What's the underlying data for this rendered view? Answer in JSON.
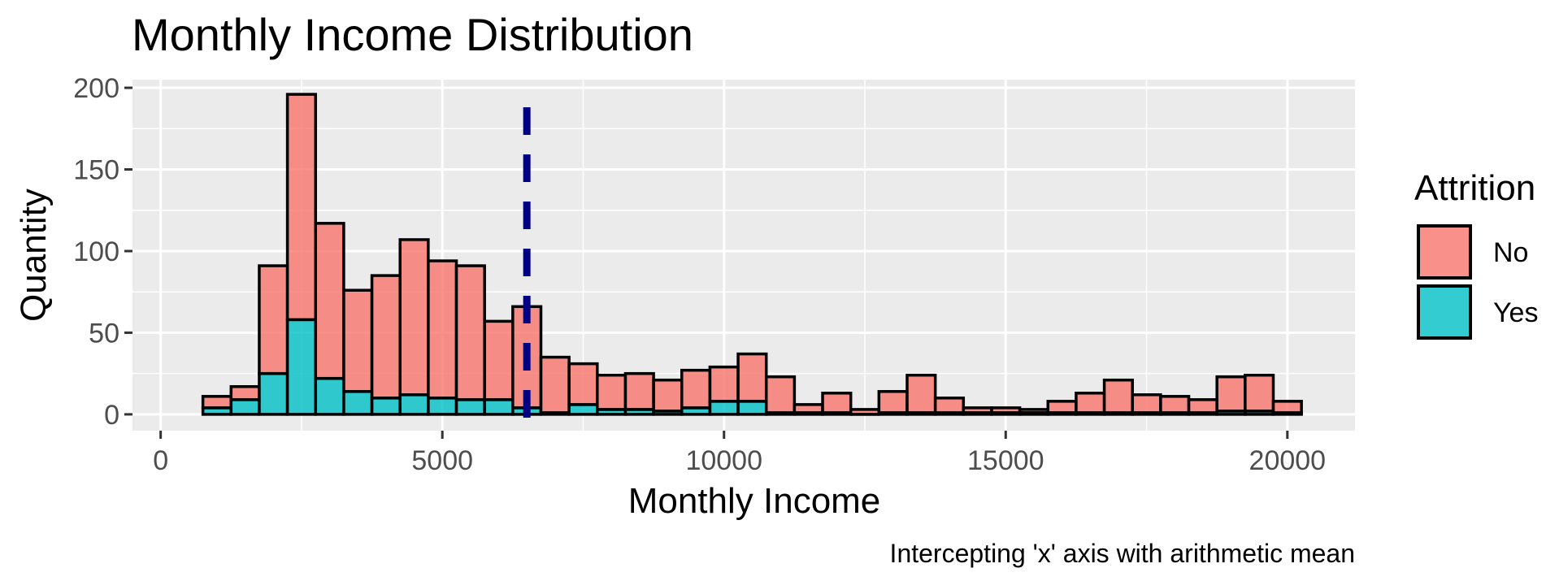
{
  "chart_data": {
    "type": "bar",
    "stacked": true,
    "title": "Monthly Income Distribution",
    "xlabel": "Monthly Income",
    "ylabel": "Quantity",
    "caption": "Intercepting 'x' axis with arithmetic mean",
    "xlim": [
      -500,
      21200
    ],
    "ylim": [
      -10,
      205
    ],
    "x_ticks": [
      0,
      5000,
      10000,
      15000,
      20000
    ],
    "x_tick_labels": [
      "0",
      "5000",
      "10000",
      "15000",
      "20000"
    ],
    "y_ticks": [
      0,
      50,
      100,
      150,
      200
    ],
    "y_tick_labels": [
      "0",
      "50",
      "100",
      "150",
      "200"
    ],
    "grid": true,
    "bin_start": 750,
    "bin_width": 500,
    "bin_centers": [
      1000,
      1500,
      2000,
      2500,
      3000,
      3500,
      4000,
      4500,
      5000,
      5500,
      6000,
      6500,
      7000,
      7500,
      8000,
      8500,
      9000,
      9500,
      10000,
      10500,
      11000,
      11500,
      12000,
      12500,
      13000,
      13500,
      14000,
      14500,
      15000,
      15500,
      16000,
      16500,
      17000,
      17500,
      18000,
      18500,
      19000,
      19500,
      20000
    ],
    "series": [
      {
        "name": "No",
        "color": "#F8766D",
        "values": [
          7,
          8,
          66,
          138,
          95,
          62,
          75,
          95,
          84,
          82,
          48,
          62,
          34,
          25,
          21,
          22,
          19,
          23,
          21,
          29,
          22,
          5,
          12,
          3,
          13,
          23,
          9,
          3,
          3,
          2,
          7,
          12,
          20,
          11,
          10,
          8,
          21,
          22,
          7
        ]
      },
      {
        "name": "Yes",
        "color": "#00BFC4",
        "values": [
          4,
          9,
          25,
          58,
          22,
          14,
          10,
          12,
          10,
          9,
          9,
          4,
          1,
          6,
          3,
          3,
          2,
          4,
          8,
          8,
          1,
          1,
          1,
          0,
          1,
          1,
          1,
          1,
          1,
          1,
          1,
          1,
          1,
          1,
          1,
          1,
          2,
          2,
          1
        ]
      }
    ],
    "mean_line": {
      "x": 6500,
      "color": "#000080",
      "style": "dashed"
    },
    "legend": {
      "title": "Attrition",
      "position": "right",
      "entries": [
        "No",
        "Yes"
      ]
    },
    "panel_background": "#EBEBEB",
    "bar_outline": "#000000",
    "bar_opacity": 0.8
  }
}
